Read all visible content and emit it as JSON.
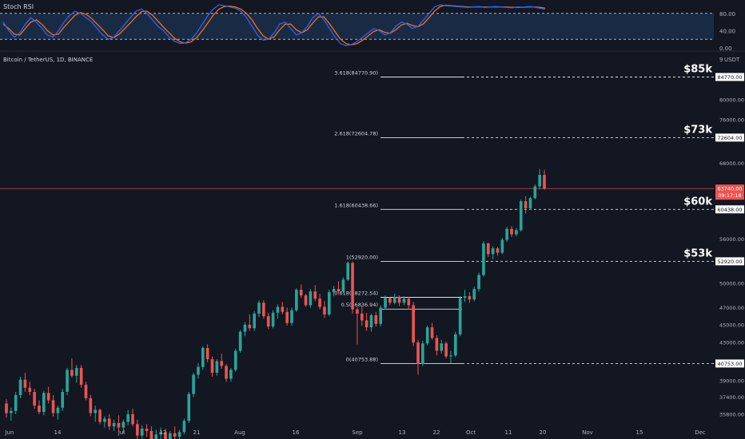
{
  "panel": {
    "indicator_label": "Stoch RSI",
    "symbol_label": "Bitcoin / TetherUS, 1D, BINANCE",
    "currency_label": "USDT",
    "currency_prefix": "9"
  },
  "colors": {
    "background": "#131722",
    "up": "#26a69a",
    "down": "#ef5350",
    "k_line": "#2962ff",
    "d_line": "#ff6d00",
    "rsi_band": "#1c3350",
    "fib_line": "#ffffff",
    "last_price_tag": "#ef5350"
  },
  "chart_data": [
    {
      "type": "line",
      "title": "Stoch RSI",
      "ylim": [
        0,
        100
      ],
      "y_ticks": [
        "80.00",
        "40.00",
        "0.00"
      ],
      "band": [
        20,
        80
      ],
      "grid": false,
      "series": [
        {
          "values": [
            60,
            40,
            25,
            35,
            55,
            70,
            60,
            45,
            30,
            25,
            40,
            60,
            75,
            85,
            80,
            70,
            60,
            45,
            30,
            20,
            25,
            40,
            55,
            70,
            85,
            90,
            80,
            65,
            50,
            40,
            25,
            15,
            10,
            12,
            20,
            35,
            55,
            75,
            90,
            100,
            98,
            95,
            92,
            85,
            70,
            50,
            30,
            18,
            20,
            35,
            55,
            60,
            45,
            30,
            35,
            50,
            70,
            80,
            65,
            45,
            25,
            10,
            5,
            8,
            15,
            25,
            35,
            45,
            40,
            30,
            35,
            50,
            60,
            55,
            45,
            50,
            65,
            80,
            95,
            100,
            98,
            97,
            96,
            95,
            94,
            95,
            96,
            94,
            95,
            96,
            95,
            94,
            93,
            95,
            94,
            96,
            95,
            92,
            90
          ]
        },
        {
          "values": [
            55,
            45,
            32,
            30,
            45,
            60,
            65,
            55,
            40,
            30,
            32,
            48,
            62,
            76,
            82,
            78,
            68,
            55,
            42,
            28,
            24,
            32,
            45,
            58,
            72,
            84,
            85,
            76,
            62,
            48,
            35,
            22,
            14,
            11,
            14,
            24,
            40,
            58,
            76,
            90,
            96,
            97,
            95,
            90,
            80,
            65,
            45,
            28,
            20,
            26,
            42,
            55,
            55,
            42,
            35,
            42,
            58,
            72,
            72,
            56,
            38,
            20,
            10,
            7,
            10,
            18,
            28,
            38,
            42,
            36,
            34,
            42,
            53,
            57,
            52,
            49,
            56,
            70,
            85,
            96,
            99,
            98,
            97,
            96,
            95,
            95,
            95,
            95,
            95,
            95,
            95,
            95,
            94,
            94,
            94,
            95,
            95,
            94,
            92
          ]
        }
      ]
    },
    {
      "type": "candlestick",
      "title": "Bitcoin / TetherUS, 1D, BINANCE",
      "ylabel": "USDT",
      "y_ticks": [
        "84770.00",
        "80000.00",
        "76000.00",
        "72604.00",
        "68000.00",
        "63740.00",
        "60438.00",
        "56000.00",
        "52920.00",
        "50000.00",
        "47000.00",
        "45000.00",
        "43000.00",
        "40753.00",
        "39000.00",
        "37400.00",
        "35800.00"
      ],
      "x_ticks": [
        "Jun",
        "14",
        "Jul",
        "12",
        "21",
        "Aug",
        "16",
        "Sep",
        "13",
        "22",
        "Oct",
        "11",
        "20",
        "Nov",
        "15",
        "Dec"
      ],
      "last_price": "63740.00",
      "countdown": "09:17:18",
      "candles": [
        [
          36800,
          37200,
          35500,
          35900
        ],
        [
          35900,
          36400,
          35200,
          36100
        ],
        [
          36100,
          37900,
          35800,
          37600
        ],
        [
          37600,
          39400,
          37300,
          39100
        ],
        [
          39100,
          39800,
          37900,
          38300
        ],
        [
          38300,
          38900,
          37600,
          37900
        ],
        [
          37900,
          38200,
          36300,
          36600
        ],
        [
          36600,
          37100,
          35800,
          36000
        ],
        [
          36000,
          38000,
          35700,
          37800
        ],
        [
          37800,
          38400,
          36800,
          37100
        ],
        [
          37100,
          37600,
          35600,
          35900
        ],
        [
          35900,
          36600,
          35300,
          36400
        ],
        [
          36400,
          38200,
          36100,
          37900
        ],
        [
          37900,
          40300,
          37600,
          40100
        ],
        [
          40100,
          41300,
          39300,
          39500
        ],
        [
          39500,
          40600,
          38800,
          40300
        ],
        [
          40300,
          40600,
          38300,
          38600
        ],
        [
          38600,
          38900,
          37100,
          37300
        ],
        [
          37300,
          37600,
          35600,
          35900
        ],
        [
          35900,
          36600,
          35100,
          36200
        ],
        [
          36200,
          36300,
          34900,
          35100
        ],
        [
          35100,
          35600,
          34600,
          35400
        ],
        [
          35400,
          35800,
          34400,
          34700
        ],
        [
          34700,
          35300,
          34300,
          35000
        ],
        [
          35000,
          35700,
          34200,
          34600
        ],
        [
          34600,
          35300,
          34100,
          35100
        ],
        [
          35100,
          36200,
          34800,
          35800
        ],
        [
          35800,
          36300,
          34700,
          34900
        ],
        [
          34900,
          35300,
          33600,
          33900
        ],
        [
          33900,
          34800,
          33400,
          34500
        ],
        [
          34500,
          34900,
          33800,
          34300
        ],
        [
          34300,
          34700,
          33200,
          33500
        ],
        [
          33500,
          34400,
          33100,
          34000
        ],
        [
          34000,
          34600,
          33500,
          34200
        ],
        [
          34200,
          34500,
          33300,
          33600
        ],
        [
          33600,
          34300,
          33000,
          34100
        ],
        [
          34100,
          34700,
          33600,
          33800
        ],
        [
          33800,
          34400,
          33200,
          34200
        ],
        [
          34200,
          35400,
          34000,
          35200
        ],
        [
          35200,
          37900,
          35000,
          37700
        ],
        [
          37700,
          39800,
          37400,
          39600
        ],
        [
          39600,
          40800,
          39200,
          40400
        ],
        [
          40400,
          42600,
          40100,
          42400
        ],
        [
          42400,
          42800,
          40900,
          41200
        ],
        [
          41200,
          41500,
          39400,
          39800
        ],
        [
          39800,
          41200,
          39500,
          41000
        ],
        [
          41000,
          41800,
          40200,
          40500
        ],
        [
          40500,
          40700,
          38900,
          39200
        ],
        [
          39200,
          40300,
          38900,
          40100
        ],
        [
          40100,
          42300,
          39900,
          42100
        ],
        [
          42100,
          44400,
          41900,
          44200
        ],
        [
          44200,
          45300,
          43700,
          45000
        ],
        [
          45000,
          46200,
          44300,
          44600
        ],
        [
          44600,
          46600,
          44300,
          46300
        ],
        [
          46300,
          47900,
          45900,
          47600
        ],
        [
          47600,
          47900,
          45700,
          46000
        ],
        [
          46000,
          46400,
          44500,
          44800
        ],
        [
          44800,
          46700,
          44600,
          46400
        ],
        [
          46400,
          47400,
          45700,
          47100
        ],
        [
          47100,
          47700,
          46200,
          46500
        ],
        [
          46500,
          47000,
          44900,
          45200
        ],
        [
          45200,
          47000,
          44900,
          46700
        ],
        [
          46700,
          49400,
          46500,
          49200
        ],
        [
          49200,
          49900,
          48200,
          48500
        ],
        [
          48500,
          48700,
          47100,
          47300
        ],
        [
          47300,
          49300,
          47000,
          49000
        ],
        [
          49000,
          49800,
          47800,
          48100
        ],
        [
          48100,
          48700,
          46800,
          47100
        ],
        [
          47100,
          47800,
          45800,
          46200
        ],
        [
          46200,
          49200,
          46000,
          48900
        ],
        [
          48900,
          49700,
          48400,
          49300
        ],
        [
          49300,
          50300,
          48700,
          49000
        ],
        [
          49000,
          50800,
          48800,
          50500
        ],
        [
          50500,
          52900,
          50300,
          52700
        ],
        [
          52700,
          52900,
          46300,
          46800
        ],
        [
          46800,
          47100,
          42800,
          46300
        ],
        [
          46300,
          47300,
          44900,
          45500
        ],
        [
          45500,
          46400,
          44300,
          44700
        ],
        [
          44700,
          46300,
          44200,
          46100
        ],
        [
          46100,
          46500,
          44800,
          45100
        ],
        [
          45100,
          47300,
          44800,
          47000
        ],
        [
          47000,
          48500,
          46800,
          48200
        ],
        [
          48200,
          48300,
          47300,
          47600
        ],
        [
          47600,
          48700,
          47400,
          48300
        ],
        [
          48300,
          48500,
          47200,
          47600
        ],
        [
          47600,
          48400,
          47300,
          48100
        ],
        [
          48100,
          48300,
          46800,
          47300
        ],
        [
          47300,
          47700,
          42600,
          43000
        ],
        [
          43000,
          43300,
          39600,
          40700
        ],
        [
          40700,
          43200,
          40500,
          42900
        ],
        [
          42900,
          44900,
          42700,
          44700
        ],
        [
          44700,
          45200,
          43300,
          43500
        ],
        [
          43500,
          43800,
          41600,
          42100
        ],
        [
          42100,
          43300,
          41800,
          42900
        ],
        [
          42900,
          43100,
          41300,
          41500
        ],
        [
          41500,
          42100,
          40800,
          41600
        ],
        [
          41600,
          44200,
          41400,
          43900
        ],
        [
          43900,
          48400,
          43700,
          48200
        ],
        [
          48200,
          49200,
          47700,
          48400
        ],
        [
          48400,
          48900,
          47600,
          48000
        ],
        [
          48000,
          49600,
          47800,
          49300
        ],
        [
          49300,
          51400,
          49000,
          51100
        ],
        [
          51100,
          55700,
          50900,
          55400
        ],
        [
          55400,
          55500,
          53500,
          53900
        ],
        [
          53900,
          55000,
          53200,
          54700
        ],
        [
          54700,
          54900,
          53700,
          54100
        ],
        [
          54100,
          56200,
          53900,
          55900
        ],
        [
          55900,
          57800,
          55600,
          57500
        ],
        [
          57500,
          57900,
          56300,
          56700
        ],
        [
          56700,
          57600,
          56400,
          57300
        ],
        [
          57300,
          62000,
          57100,
          61700
        ],
        [
          61700,
          62500,
          59800,
          60600
        ],
        [
          60600,
          62400,
          60400,
          62200
        ],
        [
          62200,
          64400,
          62000,
          64100
        ],
        [
          64100,
          67000,
          63600,
          66000
        ],
        [
          66000,
          66900,
          63500,
          63740
        ]
      ]
    }
  ],
  "fib_levels": [
    {
      "label": "3.618(84770.90)",
      "price": 84770.9,
      "tag": "84770.00",
      "callout": "$85k"
    },
    {
      "label": "2.618(72604.78)",
      "price": 72604.78,
      "tag": "72604.00",
      "callout": "$73k"
    },
    {
      "label": "1.618(60438.66)",
      "price": 60438.66,
      "tag": "60438.00",
      "callout": "$60k"
    },
    {
      "label": "1(52920.00)",
      "price": 52920,
      "tag": "52920.00",
      "callout": "$53k"
    },
    {
      "label": "0.618(48272.54)",
      "price": 48272.54
    },
    {
      "label": "0.5(46836.94)",
      "price": 46836.94
    },
    {
      "label": "0(40753.88)",
      "price": 40753.88,
      "tag": "40753.00"
    }
  ]
}
